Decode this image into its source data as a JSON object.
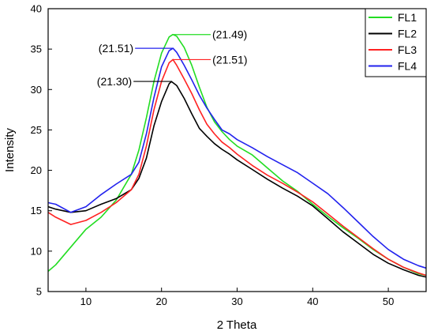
{
  "chart_data": {
    "type": "line",
    "title": "",
    "xlabel": "2 Theta",
    "ylabel": "Intensity",
    "xlim": [
      5,
      55
    ],
    "ylim": [
      5,
      40
    ],
    "xticks": [
      10,
      20,
      30,
      40,
      50
    ],
    "yticks": [
      5,
      10,
      15,
      20,
      25,
      30,
      35,
      40
    ],
    "grid": false,
    "legend_position": "top-right",
    "series": [
      {
        "name": "FL1",
        "color": "#22dd22",
        "x": [
          5,
          6,
          8,
          10,
          12,
          14,
          16,
          17,
          18,
          19,
          20,
          21,
          21.49,
          22,
          23,
          24,
          25,
          26,
          27,
          28,
          29,
          30,
          32,
          34,
          36,
          38,
          40,
          42,
          44,
          46,
          48,
          50,
          52,
          54,
          55
        ],
        "y": [
          7.5,
          8.3,
          10.5,
          12.7,
          14.2,
          16.3,
          19.5,
          22.5,
          26.5,
          31.0,
          34.5,
          36.5,
          36.8,
          36.6,
          35.2,
          33.0,
          30.3,
          27.8,
          26.0,
          24.8,
          23.8,
          23.0,
          21.9,
          20.3,
          18.7,
          17.4,
          15.8,
          14.3,
          12.9,
          11.6,
          10.2,
          9.0,
          8.0,
          7.2,
          7.0
        ]
      },
      {
        "name": "FL2",
        "color": "#000000",
        "x": [
          5,
          6,
          8,
          10,
          12,
          14,
          16,
          17,
          18,
          19,
          20,
          21,
          21.3,
          22,
          23,
          24,
          25,
          26,
          27,
          28,
          29,
          30,
          32,
          34,
          36,
          38,
          40,
          42,
          44,
          46,
          48,
          50,
          52,
          54,
          55
        ],
        "y": [
          15.5,
          15.2,
          14.8,
          15.0,
          15.8,
          16.5,
          17.6,
          19.0,
          21.5,
          25.5,
          28.5,
          30.7,
          31.0,
          30.5,
          28.9,
          27.0,
          25.2,
          24.2,
          23.3,
          22.6,
          22.0,
          21.3,
          20.1,
          18.9,
          17.8,
          16.8,
          15.6,
          14.0,
          12.4,
          11.0,
          9.6,
          8.5,
          7.7,
          7.0,
          6.8
        ]
      },
      {
        "name": "FL3",
        "color": "#ff2222",
        "x": [
          5,
          6,
          8,
          10,
          12,
          14,
          16,
          17,
          18,
          19,
          20,
          21,
          21.51,
          22,
          23,
          24,
          25,
          26,
          27,
          28,
          29,
          30,
          32,
          34,
          36,
          38,
          40,
          42,
          44,
          46,
          48,
          50,
          52,
          54,
          55
        ],
        "y": [
          14.8,
          14.2,
          13.3,
          13.8,
          14.8,
          16.0,
          17.6,
          19.5,
          23.0,
          27.5,
          31.0,
          33.3,
          33.7,
          33.0,
          31.3,
          29.5,
          27.5,
          25.7,
          24.5,
          23.5,
          22.8,
          22.0,
          20.6,
          19.4,
          18.4,
          17.3,
          16.1,
          14.6,
          13.1,
          11.7,
          10.3,
          9.0,
          8.0,
          7.3,
          7.0
        ]
      },
      {
        "name": "FL4",
        "color": "#2222ee",
        "x": [
          5,
          6,
          8,
          10,
          12,
          14,
          16,
          17,
          18,
          19,
          20,
          21,
          21.51,
          22,
          23,
          24,
          25,
          26,
          27,
          28,
          29,
          30,
          32,
          34,
          36,
          38,
          40,
          42,
          44,
          46,
          48,
          50,
          52,
          54,
          55
        ],
        "y": [
          16.0,
          15.8,
          14.8,
          15.5,
          17.0,
          18.3,
          19.5,
          21.0,
          24.5,
          29.0,
          32.8,
          34.8,
          35.1,
          34.6,
          33.0,
          31.2,
          29.3,
          27.7,
          26.3,
          25.0,
          24.5,
          23.8,
          22.8,
          21.7,
          20.7,
          19.7,
          18.4,
          17.1,
          15.4,
          13.6,
          11.8,
          10.2,
          9.0,
          8.2,
          7.9
        ]
      }
    ],
    "annotations": [
      {
        "text": "(21.49)",
        "series": "FL1",
        "x": 21.49,
        "y": 36.8,
        "side": "right"
      },
      {
        "text": "(21.51)",
        "series": "FL4",
        "x": 21.51,
        "y": 35.1,
        "side": "left"
      },
      {
        "text": "(21.51)",
        "series": "FL3",
        "x": 21.51,
        "y": 33.7,
        "side": "right"
      },
      {
        "text": "(21.30)",
        "series": "FL2",
        "x": 21.3,
        "y": 31.0,
        "side": "left"
      }
    ]
  }
}
